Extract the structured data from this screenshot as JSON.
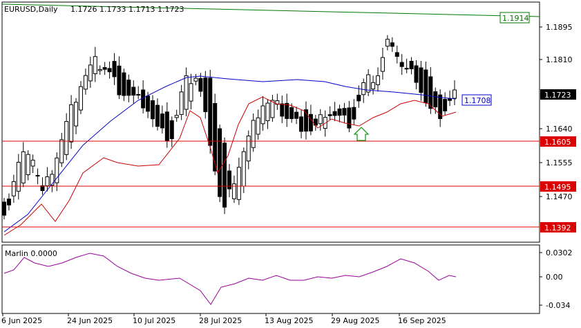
{
  "window": {
    "symbol": "EURUSD,Daily",
    "ohlc": "1.1726 1.1733 1.1713 1.1723"
  },
  "colors": {
    "bull": "#ffffff",
    "bear": "#000000",
    "ma_blue": "#0000cc",
    "ma_red": "#cc0000",
    "trend_green": "#007700",
    "hline_red": "#dd0000",
    "oscillator": "#990099"
  },
  "price_axis": {
    "ticks": [
      "1.1895",
      "1.1810",
      "1.1640",
      "1.1555",
      "1.1470"
    ],
    "current_price": "1.1723"
  },
  "level_labels": {
    "trendline": "1.1914",
    "blue_ma": "1.1708",
    "support_1": "1.1605",
    "support_2": "1.1495",
    "support_3": "1.1392"
  },
  "indicator": {
    "name": "Marlin 0.0000",
    "ticks": [
      "0.0302",
      "0.00",
      "-0.034"
    ]
  },
  "date_axis": [
    "6 Jun 2025",
    "24 Jun 2025",
    "10 Jul 2025",
    "28 Jul 2025",
    "13 Aug 2025",
    "29 Aug 2025",
    "16 Sep 2025"
  ],
  "annotations": {
    "arrow": "green-up-arrow-icon"
  }
}
